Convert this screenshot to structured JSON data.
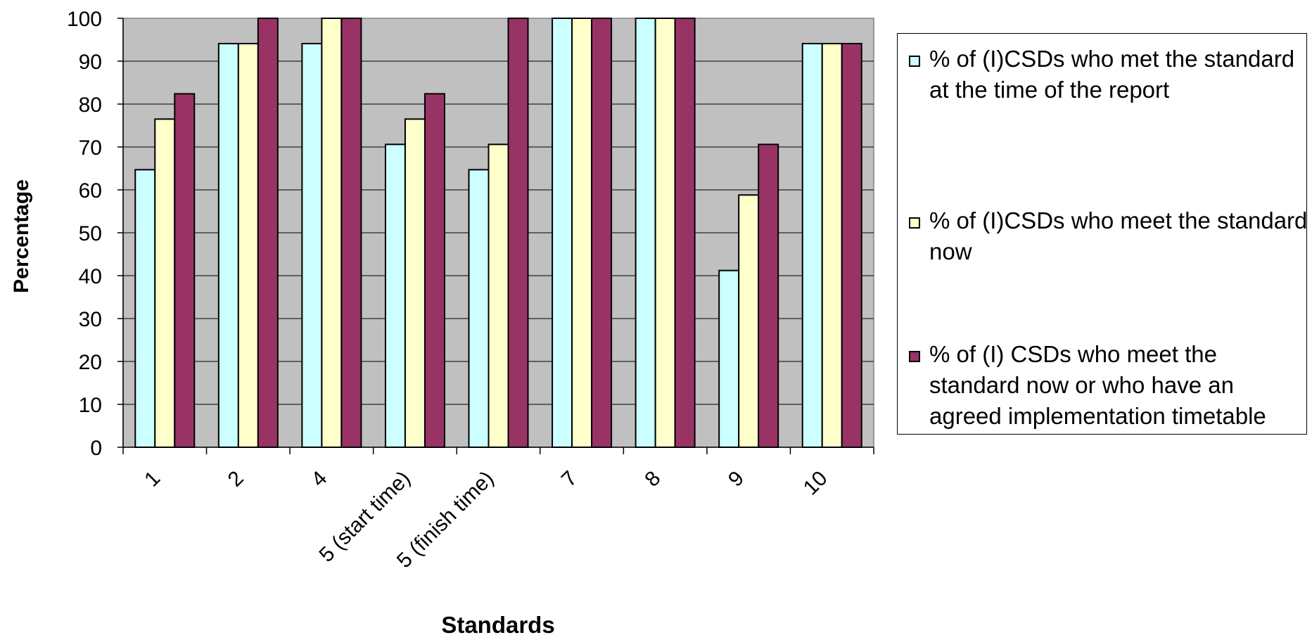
{
  "chart_data": {
    "type": "bar",
    "title": "",
    "xlabel": "Standards",
    "ylabel": "Percentage",
    "ylim": [
      0,
      100
    ],
    "yticks": [
      0,
      10,
      20,
      30,
      40,
      50,
      60,
      70,
      80,
      90,
      100
    ],
    "categories": [
      "1",
      "2",
      "4",
      "5 (start time)",
      "5 (finish time)",
      "7",
      "8",
      "9",
      "10"
    ],
    "series": [
      {
        "name": "% of (I)CSDs who met the standard at the time of the report",
        "color": "#ccffff",
        "values": [
          64.7,
          94.1,
          94.1,
          70.6,
          64.7,
          100,
          100,
          41.2,
          94.1
        ]
      },
      {
        "name": "% of (I)CSDs who meet the standard now",
        "color": "#ffffcc",
        "values": [
          76.5,
          94.1,
          100,
          76.5,
          70.6,
          100,
          100,
          58.8,
          94.1
        ]
      },
      {
        "name": "% of (I) CSDs who meet the standard now or who have an agreed implementation timetable",
        "color": "#993366",
        "values": [
          82.4,
          100,
          100,
          82.4,
          100,
          100,
          100,
          70.6,
          94.1
        ]
      }
    ],
    "grid": true,
    "plot_background": "#c0c0c0",
    "legend_position": "right"
  }
}
